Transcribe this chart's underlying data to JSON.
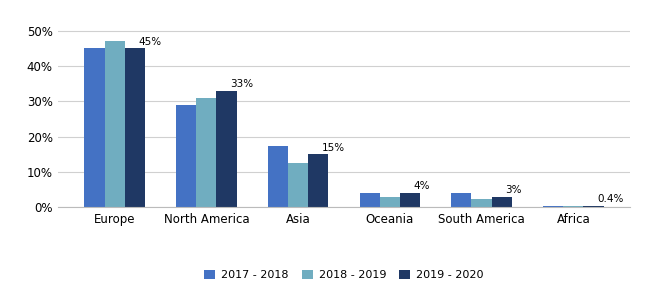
{
  "categories": [
    "Europe",
    "North America",
    "Asia",
    "Oceania",
    "South America",
    "Africa"
  ],
  "series": {
    "2017 - 2018": [
      45,
      29,
      17.5,
      4,
      4,
      0.3
    ],
    "2018 - 2019": [
      47,
      31,
      12.5,
      3,
      2.5,
      0.3
    ],
    "2019 - 2020": [
      45,
      33,
      15,
      4,
      3,
      0.4
    ]
  },
  "bar_colors": {
    "2017 - 2018": "#4472C4",
    "2018 - 2019": "#70ADC0",
    "2019 - 2020": "#1F3864"
  },
  "annotations": {
    "Europe": "45%",
    "North America": "33%",
    "Asia": "15%",
    "Oceania": "4%",
    "South America": "3%",
    "Africa": "0.4%"
  },
  "ylim": [
    0,
    53
  ],
  "yticks": [
    0,
    10,
    20,
    30,
    40,
    50
  ],
  "ytick_labels": [
    "0%",
    "10%",
    "20%",
    "30%",
    "40%",
    "50%"
  ],
  "legend_order": [
    "2017 - 2018",
    "2018 - 2019",
    "2019 - 2020"
  ],
  "background_color": "#ffffff",
  "grid_color": "#d0d0d0",
  "bar_width": 0.22,
  "annotation_fontsize": 7.5,
  "tick_fontsize": 8.5,
  "legend_fontsize": 8
}
